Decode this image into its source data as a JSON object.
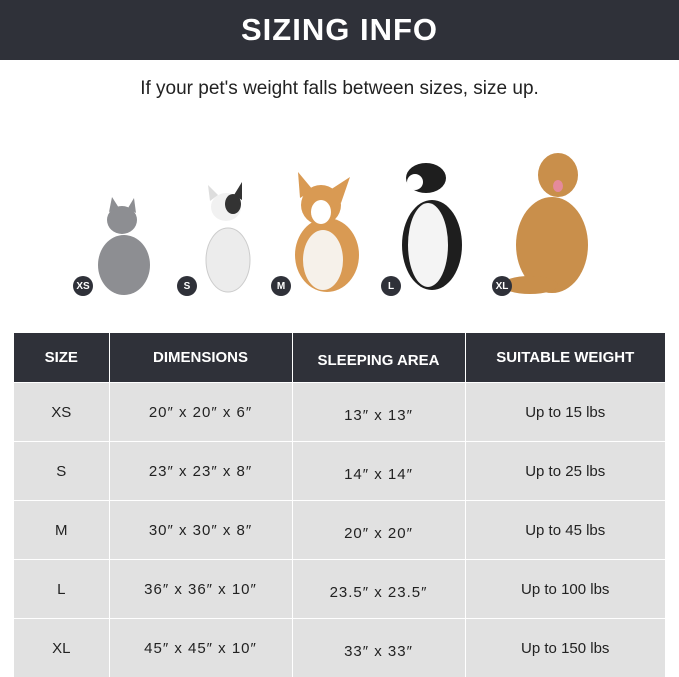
{
  "header": {
    "title": "SIZING INFO"
  },
  "subtitle": "If your pet's weight falls between sizes, size up.",
  "animals": [
    {
      "badge": "XS",
      "pet": "cat"
    },
    {
      "badge": "S",
      "pet": "french-bulldog"
    },
    {
      "badge": "M",
      "pet": "corgi"
    },
    {
      "badge": "L",
      "pet": "border-collie"
    },
    {
      "badge": "XL",
      "pet": "golden-retriever"
    }
  ],
  "table": {
    "headers": [
      "SIZE",
      "DIMENSIONS",
      "SLEEPING AREA",
      "SUITABLE WEIGHT"
    ],
    "rows": [
      [
        "XS",
        "20″ x 20″ x 6″",
        "13″ x 13″",
        "Up to 15 lbs"
      ],
      [
        "S",
        "23″ x 23″ x 8″",
        "14″ x 14″",
        "Up to 25 lbs"
      ],
      [
        "M",
        "30″ x 30″ x 8″",
        "20″ x 20″",
        "Up to 45 lbs"
      ],
      [
        "L",
        "36″ x 36″ x 10″",
        "23.5″ x 23.5″",
        "Up to 100 lbs"
      ],
      [
        "XL",
        "45″ x 45″ x 10″",
        "33″ x 33″",
        "Up to 150 lbs"
      ]
    ]
  },
  "colors": {
    "dark": "#2f3139",
    "row": "#e1e1e1"
  }
}
